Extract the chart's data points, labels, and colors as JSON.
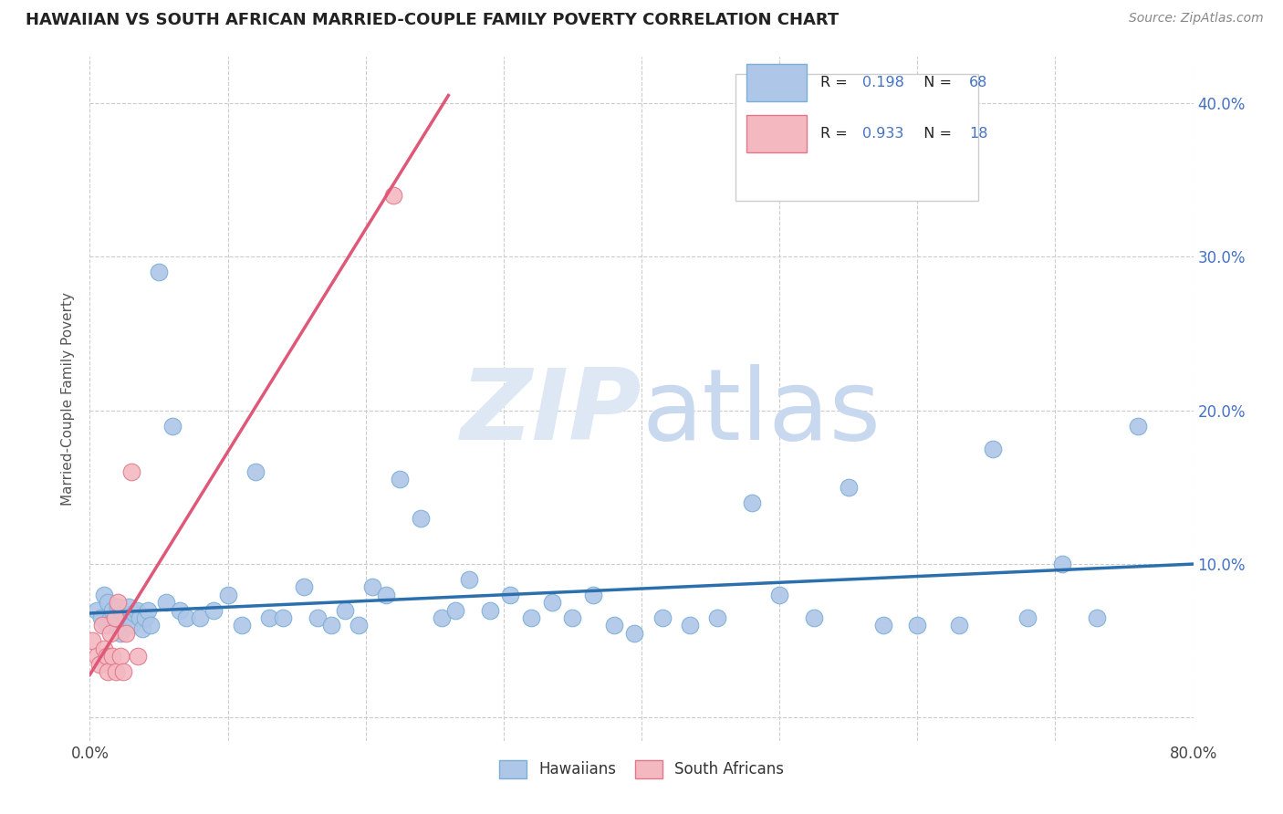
{
  "title": "HAWAIIAN VS SOUTH AFRICAN MARRIED-COUPLE FAMILY POVERTY CORRELATION CHART",
  "source": "Source: ZipAtlas.com",
  "ylabel": "Married-Couple Family Poverty",
  "xlim": [
    0,
    0.8
  ],
  "ylim": [
    -0.015,
    0.43
  ],
  "hawaiian_color": "#aec6e8",
  "hawaiian_edge": "#7bafd4",
  "sa_color": "#f4b8c1",
  "sa_edge": "#e0788a",
  "trend_blue": "#2c6fad",
  "trend_pink": "#e05878",
  "background_color": "#ffffff",
  "hawaiians_x": [
    0.005,
    0.008,
    0.01,
    0.012,
    0.013,
    0.015,
    0.016,
    0.018,
    0.02,
    0.022,
    0.024,
    0.026,
    0.028,
    0.03,
    0.032,
    0.034,
    0.036,
    0.038,
    0.04,
    0.042,
    0.044,
    0.05,
    0.055,
    0.06,
    0.065,
    0.07,
    0.08,
    0.09,
    0.1,
    0.11,
    0.12,
    0.13,
    0.14,
    0.155,
    0.165,
    0.175,
    0.185,
    0.195,
    0.205,
    0.215,
    0.225,
    0.24,
    0.255,
    0.265,
    0.275,
    0.29,
    0.305,
    0.32,
    0.335,
    0.35,
    0.365,
    0.38,
    0.395,
    0.415,
    0.435,
    0.455,
    0.48,
    0.5,
    0.525,
    0.55,
    0.575,
    0.6,
    0.63,
    0.655,
    0.68,
    0.705,
    0.73,
    0.76
  ],
  "hawaiians_y": [
    0.07,
    0.065,
    0.08,
    0.06,
    0.075,
    0.065,
    0.07,
    0.06,
    0.072,
    0.055,
    0.068,
    0.065,
    0.072,
    0.06,
    0.068,
    0.07,
    0.065,
    0.058,
    0.065,
    0.07,
    0.06,
    0.29,
    0.075,
    0.19,
    0.07,
    0.065,
    0.065,
    0.07,
    0.08,
    0.06,
    0.16,
    0.065,
    0.065,
    0.085,
    0.065,
    0.06,
    0.07,
    0.06,
    0.085,
    0.08,
    0.155,
    0.13,
    0.065,
    0.07,
    0.09,
    0.07,
    0.08,
    0.065,
    0.075,
    0.065,
    0.08,
    0.06,
    0.055,
    0.065,
    0.06,
    0.065,
    0.14,
    0.08,
    0.065,
    0.15,
    0.06,
    0.06,
    0.06,
    0.175,
    0.065,
    0.1,
    0.065,
    0.19
  ],
  "sa_x": [
    0.002,
    0.005,
    0.007,
    0.009,
    0.01,
    0.012,
    0.013,
    0.015,
    0.016,
    0.018,
    0.019,
    0.02,
    0.022,
    0.024,
    0.026,
    0.03,
    0.035,
    0.22
  ],
  "sa_y": [
    0.05,
    0.04,
    0.035,
    0.06,
    0.045,
    0.04,
    0.03,
    0.055,
    0.04,
    0.065,
    0.03,
    0.075,
    0.04,
    0.03,
    0.055,
    0.16,
    0.04,
    0.34
  ],
  "blue_trend_x0": 0.0,
  "blue_trend_y0": 0.068,
  "blue_trend_x1": 0.8,
  "blue_trend_y1": 0.1,
  "pink_trend_x0": 0.0,
  "pink_trend_y0": 0.028,
  "pink_trend_x1": 0.26,
  "pink_trend_y1": 0.405
}
